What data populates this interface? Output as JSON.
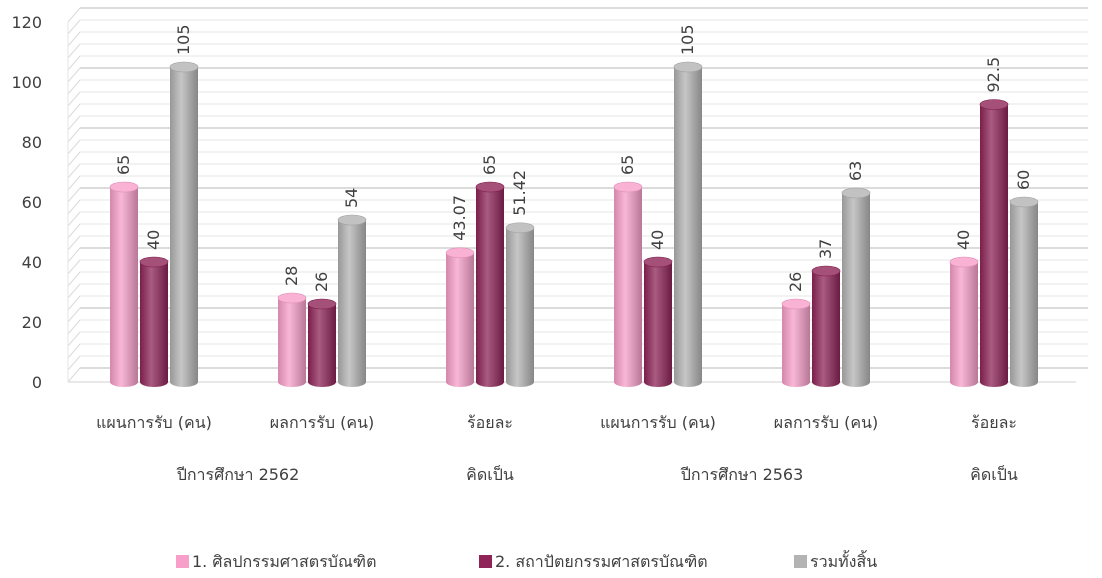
{
  "chart_data": {
    "type": "bar",
    "title": "",
    "xlabel": "",
    "ylabel": "",
    "ylim": [
      0,
      120
    ],
    "yticks": [
      0,
      20,
      40,
      60,
      80,
      100,
      120
    ],
    "grid": true,
    "legend_position": "bottom",
    "categories": [
      "แผนการรับ (คน)",
      "ผลการรับ (คน)",
      "ร้อยละ",
      "แผนการรับ (คน)",
      "ผลการรับ (คน)",
      "ร้อยละ"
    ],
    "groups": [
      {
        "label": "ปีการศึกษา 2562",
        "span": [
          0,
          1
        ]
      },
      {
        "label": "คิดเป็น",
        "span": [
          2,
          2
        ]
      },
      {
        "label": "ปีการศึกษา 2563",
        "span": [
          3,
          4
        ]
      },
      {
        "label": "คิดเป็น",
        "span": [
          5,
          5
        ]
      }
    ],
    "series": [
      {
        "name": "1.      ศิลปกรรมศาสตรบัณฑิต",
        "color": "#f79fc9",
        "values": [
          65,
          28,
          43.07,
          65,
          26,
          40
        ],
        "labels": [
          "65",
          "28",
          "43.07",
          "65",
          "26",
          "40"
        ]
      },
      {
        "name": "2.      สถาปัตยกรรมศาสตรบัณฑิต",
        "color": "#8e2457",
        "values": [
          40,
          26,
          65,
          40,
          37,
          92.5
        ],
        "labels": [
          "40",
          "26",
          "65",
          "40",
          "37",
          "92.5"
        ]
      },
      {
        "name": "รวมทั้งสิ้น",
        "color": "#b3b3b3",
        "values": [
          105,
          54,
          51.42,
          105,
          63,
          60
        ],
        "labels": [
          "105",
          "54",
          "51.42",
          "105",
          "63",
          "60"
        ]
      }
    ]
  }
}
